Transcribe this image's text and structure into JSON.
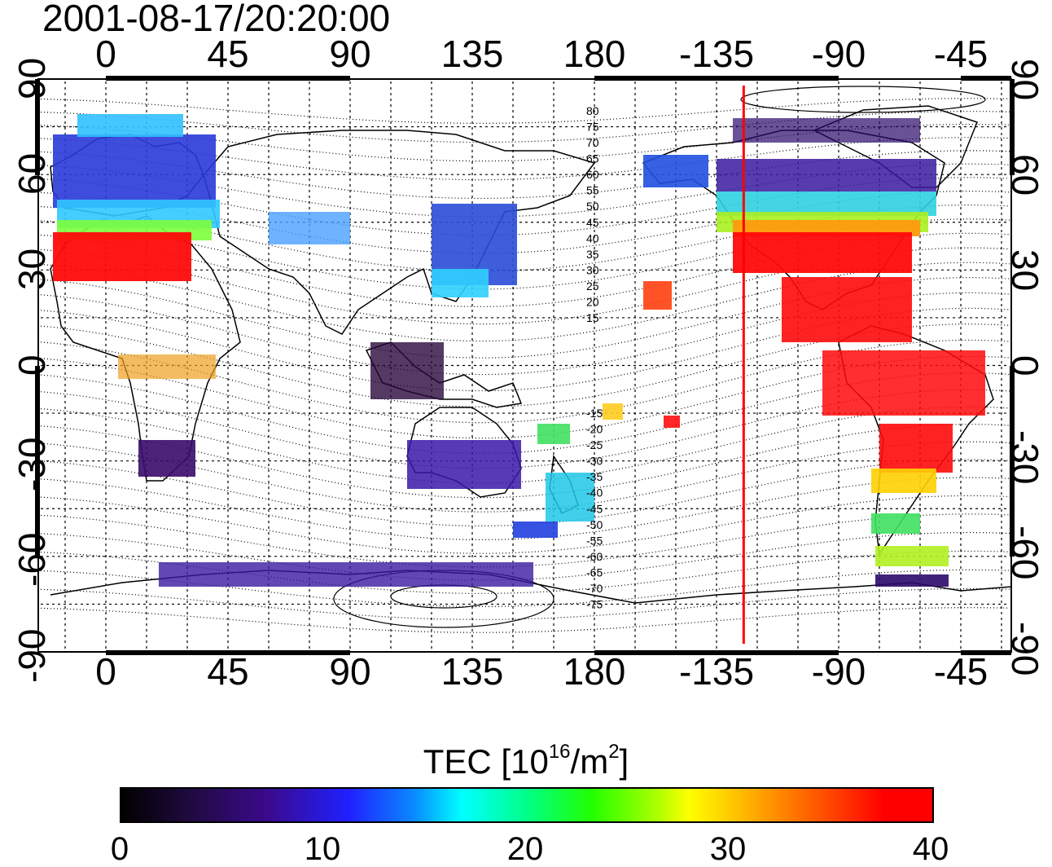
{
  "title": "2001-08-17/20:20:00",
  "axes": {
    "top_ticks": [
      "0",
      "45",
      "90",
      "135",
      "180",
      "-135",
      "-90",
      "-45"
    ],
    "bottom_ticks": [
      "0",
      "45",
      "90",
      "135",
      "180",
      "-135",
      "-90",
      "-45"
    ],
    "left_ticks": [
      "90",
      "60",
      "30",
      "0",
      "-30",
      "-60",
      "-90"
    ],
    "right_ticks": [
      "90",
      "60",
      "30",
      "0",
      "-30",
      "-60",
      "-90"
    ]
  },
  "contour_labels": [
    "80",
    "75",
    "70",
    "65",
    "60",
    "55",
    "50",
    "45",
    "40",
    "35",
    "30",
    "25",
    "20",
    "15",
    "-15",
    "-20",
    "-25",
    "-30",
    "-35",
    "-40",
    "-45",
    "-50",
    "-55",
    "-60",
    "-65",
    "-70",
    "-75"
  ],
  "terminator_longitude": -125,
  "colorbar": {
    "title_prefix": "TEC  [10",
    "title_sup1": "16",
    "title_mid": "/m",
    "title_sup2": "2",
    "title_suffix": "]",
    "ticks": [
      "0",
      "10",
      "20",
      "30",
      "40"
    ],
    "min": 0,
    "max": 40
  },
  "colors": {
    "terminator": "#ff0000",
    "frame": "#000000"
  }
}
